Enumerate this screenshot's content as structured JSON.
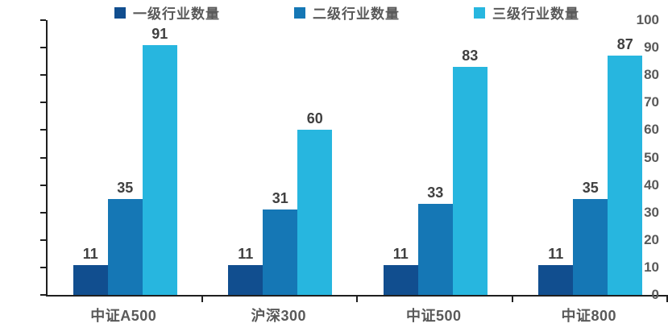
{
  "chart_data": {
    "type": "bar",
    "title": "",
    "xlabel": "",
    "ylabel": "",
    "categories": [
      "中证A500",
      "沪深300",
      "中证500",
      "中证800"
    ],
    "series": [
      {
        "name": "一级行业数量",
        "color": "#114E8F",
        "values": [
          11,
          11,
          11,
          11
        ]
      },
      {
        "name": "二级行业数量",
        "color": "#1577B5",
        "values": [
          35,
          31,
          33,
          35
        ]
      },
      {
        "name": "三级行业数量",
        "color": "#27B6DF",
        "values": [
          91,
          60,
          83,
          87
        ]
      }
    ],
    "ylim": [
      0,
      100
    ],
    "yticks": [
      0,
      10,
      20,
      30,
      40,
      50,
      60,
      70,
      80,
      90,
      100
    ],
    "grid": false,
    "legend_position": "top",
    "data_labels": true,
    "axis_color": "#1f1f1f",
    "tick_label_color": "#595959",
    "value_label_color": "#404040"
  }
}
